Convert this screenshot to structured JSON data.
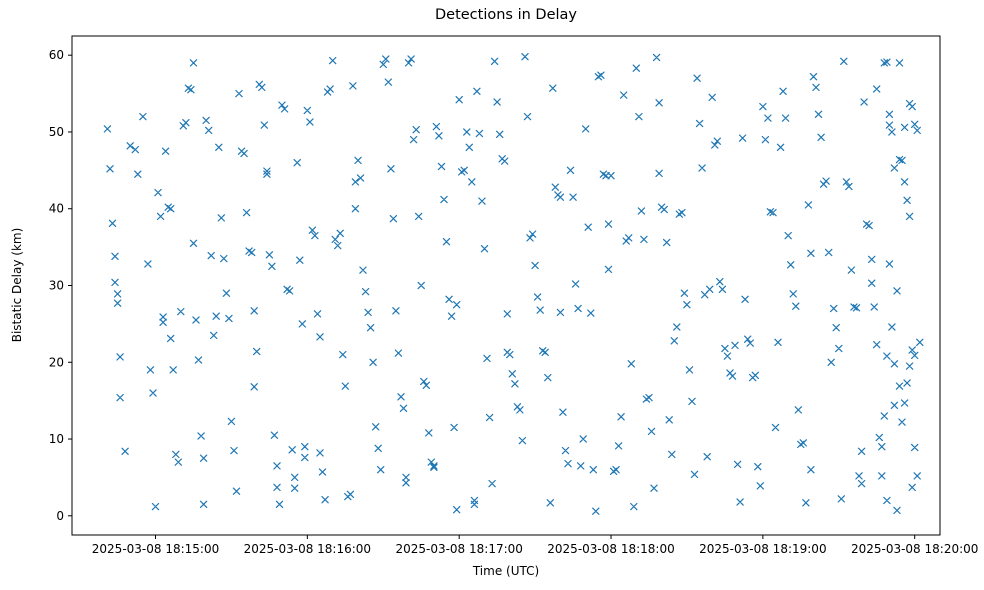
{
  "chart_data": {
    "type": "scatter",
    "title": "Detections in Delay",
    "xlabel": "Time (UTC)",
    "ylabel": "Bistatic Delay (km)",
    "marker": "x",
    "marker_color": "#1f77b4",
    "grid": false,
    "legend": "none",
    "x_encoding": "seconds after 2025-03-08 18:14:00 UTC",
    "xlim": [
      27,
      370
    ],
    "ylim": [
      -2.5,
      62.5
    ],
    "xticks": [
      {
        "value": 60,
        "label": "2025-03-08 18:15:00"
      },
      {
        "value": 120,
        "label": "2025-03-08 18:16:00"
      },
      {
        "value": 180,
        "label": "2025-03-08 18:17:00"
      },
      {
        "value": 240,
        "label": "2025-03-08 18:18:00"
      },
      {
        "value": 300,
        "label": "2025-03-08 18:19:00"
      },
      {
        "value": 360,
        "label": "2025-03-08 18:20:00"
      }
    ],
    "yticks": [
      0,
      10,
      20,
      30,
      40,
      50,
      60
    ],
    "points": [
      [
        41,
        50.4
      ],
      [
        42,
        45.2
      ],
      [
        43,
        38.1
      ],
      [
        44,
        33.8
      ],
      [
        44,
        30.4
      ],
      [
        45,
        28.9
      ],
      [
        45,
        27.7
      ],
      [
        46,
        20.7
      ],
      [
        46,
        15.4
      ],
      [
        48,
        8.4
      ],
      [
        50,
        48.2
      ],
      [
        52,
        47.7
      ],
      [
        53,
        44.5
      ],
      [
        55,
        52.0
      ],
      [
        57,
        32.8
      ],
      [
        58,
        19.0
      ],
      [
        59,
        16.0
      ],
      [
        60,
        1.2
      ],
      [
        61,
        42.1
      ],
      [
        62,
        39.0
      ],
      [
        63,
        25.9
      ],
      [
        63,
        25.2
      ],
      [
        64,
        47.5
      ],
      [
        65,
        40.2
      ],
      [
        66,
        40.0
      ],
      [
        66,
        23.1
      ],
      [
        67,
        19.0
      ],
      [
        68,
        8.0
      ],
      [
        69,
        7.0
      ],
      [
        70,
        26.6
      ],
      [
        71,
        50.8
      ],
      [
        72,
        51.2
      ],
      [
        73,
        55.7
      ],
      [
        74,
        55.5
      ],
      [
        75,
        59.0
      ],
      [
        75,
        35.5
      ],
      [
        76,
        25.5
      ],
      [
        77,
        20.3
      ],
      [
        78,
        10.4
      ],
      [
        79,
        1.5
      ],
      [
        79,
        7.5
      ],
      [
        80,
        51.5
      ],
      [
        81,
        50.2
      ],
      [
        82,
        33.9
      ],
      [
        83,
        23.5
      ],
      [
        84,
        26.0
      ],
      [
        85,
        48.0
      ],
      [
        86,
        38.8
      ],
      [
        87,
        33.5
      ],
      [
        88,
        29.0
      ],
      [
        89,
        25.7
      ],
      [
        90,
        12.3
      ],
      [
        91,
        8.5
      ],
      [
        92,
        3.2
      ],
      [
        93,
        55.0
      ],
      [
        94,
        47.5
      ],
      [
        95,
        47.2
      ],
      [
        96,
        39.5
      ],
      [
        97,
        34.5
      ],
      [
        98,
        34.3
      ],
      [
        99,
        26.7
      ],
      [
        99,
        16.8
      ],
      [
        100,
        21.4
      ],
      [
        101,
        56.2
      ],
      [
        102,
        55.8
      ],
      [
        103,
        50.9
      ],
      [
        104,
        44.9
      ],
      [
        104,
        44.5
      ],
      [
        105,
        34.0
      ],
      [
        106,
        32.5
      ],
      [
        107,
        10.5
      ],
      [
        108,
        6.5
      ],
      [
        108,
        3.7
      ],
      [
        109,
        1.5
      ],
      [
        110,
        53.5
      ],
      [
        111,
        53.0
      ],
      [
        112,
        29.5
      ],
      [
        113,
        29.3
      ],
      [
        114,
        8.6
      ],
      [
        115,
        5.0
      ],
      [
        115,
        3.6
      ],
      [
        116,
        46.0
      ],
      [
        117,
        33.3
      ],
      [
        118,
        25.0
      ],
      [
        119,
        9.0
      ],
      [
        119,
        7.6
      ],
      [
        120,
        52.8
      ],
      [
        121,
        51.3
      ],
      [
        122,
        37.2
      ],
      [
        123,
        36.5
      ],
      [
        124,
        26.3
      ],
      [
        125,
        23.3
      ],
      [
        125,
        8.2
      ],
      [
        126,
        5.7
      ],
      [
        127,
        2.1
      ],
      [
        128,
        55.2
      ],
      [
        129,
        55.6
      ],
      [
        130,
        59.3
      ],
      [
        131,
        36.0
      ],
      [
        132,
        35.2
      ],
      [
        133,
        36.8
      ],
      [
        134,
        21.0
      ],
      [
        135,
        16.9
      ],
      [
        136,
        2.5
      ],
      [
        137,
        2.8
      ],
      [
        138,
        56.0
      ],
      [
        139,
        43.5
      ],
      [
        139,
        40.0
      ],
      [
        140,
        46.3
      ],
      [
        141,
        44.0
      ],
      [
        142,
        32.0
      ],
      [
        143,
        29.2
      ],
      [
        144,
        26.5
      ],
      [
        145,
        24.5
      ],
      [
        146,
        20.0
      ],
      [
        147,
        11.6
      ],
      [
        148,
        8.8
      ],
      [
        149,
        6.0
      ],
      [
        150,
        58.8
      ],
      [
        151,
        59.5
      ],
      [
        152,
        56.5
      ],
      [
        153,
        45.2
      ],
      [
        154,
        38.7
      ],
      [
        155,
        26.7
      ],
      [
        156,
        21.2
      ],
      [
        157,
        15.5
      ],
      [
        158,
        14.0
      ],
      [
        159,
        5.0
      ],
      [
        159,
        4.3
      ],
      [
        160,
        59.0
      ],
      [
        161,
        59.5
      ],
      [
        162,
        49.0
      ],
      [
        163,
        50.3
      ],
      [
        164,
        39.0
      ],
      [
        165,
        30.0
      ],
      [
        166,
        17.5
      ],
      [
        167,
        17.0
      ],
      [
        168,
        10.8
      ],
      [
        169,
        7.0
      ],
      [
        170,
        6.5
      ],
      [
        170,
        6.3
      ],
      [
        171,
        50.7
      ],
      [
        172,
        49.5
      ],
      [
        173,
        45.5
      ],
      [
        174,
        41.2
      ],
      [
        175,
        35.7
      ],
      [
        176,
        28.2
      ],
      [
        177,
        26.0
      ],
      [
        178,
        11.5
      ],
      [
        179,
        0.8
      ],
      [
        179,
        27.5
      ],
      [
        180,
        54.2
      ],
      [
        181,
        44.8
      ],
      [
        182,
        45.0
      ],
      [
        183,
        50.0
      ],
      [
        184,
        48.0
      ],
      [
        185,
        43.5
      ],
      [
        186,
        2.0
      ],
      [
        186,
        1.5
      ],
      [
        187,
        55.3
      ],
      [
        188,
        49.8
      ],
      [
        189,
        41.0
      ],
      [
        190,
        34.8
      ],
      [
        191,
        20.5
      ],
      [
        192,
        12.8
      ],
      [
        193,
        4.2
      ],
      [
        194,
        59.2
      ],
      [
        195,
        53.9
      ],
      [
        196,
        49.7
      ],
      [
        197,
        46.5
      ],
      [
        198,
        46.2
      ],
      [
        199,
        26.3
      ],
      [
        199,
        21.3
      ],
      [
        200,
        21.0
      ],
      [
        201,
        18.5
      ],
      [
        202,
        17.2
      ],
      [
        203,
        14.2
      ],
      [
        204,
        13.8
      ],
      [
        205,
        9.8
      ],
      [
        206,
        59.8
      ],
      [
        207,
        52.0
      ],
      [
        208,
        36.2
      ],
      [
        209,
        36.7
      ],
      [
        210,
        32.6
      ],
      [
        211,
        28.5
      ],
      [
        212,
        26.8
      ],
      [
        213,
        21.5
      ],
      [
        214,
        21.3
      ],
      [
        215,
        18.0
      ],
      [
        216,
        1.7
      ],
      [
        217,
        55.7
      ],
      [
        218,
        42.8
      ],
      [
        219,
        41.8
      ],
      [
        220,
        41.5
      ],
      [
        220,
        26.5
      ],
      [
        221,
        13.5
      ],
      [
        222,
        8.5
      ],
      [
        223,
        6.8
      ],
      [
        224,
        45.0
      ],
      [
        225,
        41.5
      ],
      [
        226,
        30.2
      ],
      [
        227,
        27.0
      ],
      [
        228,
        6.5
      ],
      [
        229,
        10.0
      ],
      [
        230,
        50.4
      ],
      [
        231,
        37.6
      ],
      [
        232,
        26.4
      ],
      [
        233,
        6.0
      ],
      [
        234,
        0.6
      ],
      [
        235,
        57.2
      ],
      [
        236,
        57.4
      ],
      [
        237,
        44.5
      ],
      [
        238,
        44.3
      ],
      [
        239,
        38.0
      ],
      [
        239,
        32.1
      ],
      [
        240,
        44.3
      ],
      [
        241,
        5.8
      ],
      [
        242,
        6.0
      ],
      [
        243,
        9.1
      ],
      [
        244,
        12.9
      ],
      [
        245,
        54.8
      ],
      [
        246,
        35.8
      ],
      [
        247,
        36.2
      ],
      [
        248,
        19.8
      ],
      [
        249,
        1.2
      ],
      [
        250,
        58.3
      ],
      [
        251,
        52.0
      ],
      [
        252,
        39.7
      ],
      [
        253,
        36.0
      ],
      [
        254,
        15.2
      ],
      [
        255,
        15.4
      ],
      [
        256,
        11.0
      ],
      [
        257,
        3.6
      ],
      [
        258,
        59.7
      ],
      [
        259,
        53.8
      ],
      [
        259,
        44.6
      ],
      [
        260,
        40.2
      ],
      [
        261,
        39.9
      ],
      [
        262,
        35.6
      ],
      [
        263,
        12.5
      ],
      [
        264,
        8.0
      ],
      [
        265,
        22.8
      ],
      [
        266,
        24.6
      ],
      [
        267,
        39.3
      ],
      [
        268,
        39.5
      ],
      [
        269,
        29.0
      ],
      [
        270,
        27.5
      ],
      [
        271,
        19.0
      ],
      [
        272,
        14.9
      ],
      [
        273,
        5.4
      ],
      [
        274,
        57.0
      ],
      [
        275,
        51.1
      ],
      [
        276,
        45.3
      ],
      [
        277,
        28.8
      ],
      [
        278,
        7.7
      ],
      [
        279,
        29.5
      ],
      [
        280,
        54.5
      ],
      [
        281,
        48.3
      ],
      [
        282,
        48.8
      ],
      [
        283,
        30.5
      ],
      [
        284,
        29.5
      ],
      [
        285,
        21.8
      ],
      [
        286,
        20.8
      ],
      [
        287,
        18.6
      ],
      [
        288,
        18.2
      ],
      [
        289,
        22.2
      ],
      [
        290,
        6.7
      ],
      [
        291,
        1.8
      ],
      [
        292,
        49.2
      ],
      [
        293,
        28.2
      ],
      [
        294,
        23.0
      ],
      [
        295,
        22.5
      ],
      [
        296,
        18.0
      ],
      [
        297,
        18.3
      ],
      [
        298,
        6.4
      ],
      [
        299,
        3.9
      ],
      [
        300,
        53.3
      ],
      [
        301,
        49.0
      ],
      [
        302,
        51.8
      ],
      [
        303,
        39.6
      ],
      [
        304,
        39.5
      ],
      [
        305,
        11.5
      ],
      [
        306,
        22.6
      ],
      [
        307,
        48.0
      ],
      [
        308,
        55.3
      ],
      [
        309,
        51.8
      ],
      [
        310,
        36.5
      ],
      [
        311,
        32.7
      ],
      [
        312,
        28.9
      ],
      [
        313,
        27.3
      ],
      [
        314,
        13.8
      ],
      [
        315,
        9.3
      ],
      [
        316,
        9.5
      ],
      [
        317,
        1.7
      ],
      [
        318,
        40.5
      ],
      [
        319,
        34.2
      ],
      [
        319,
        6.0
      ],
      [
        320,
        57.2
      ],
      [
        321,
        55.8
      ],
      [
        322,
        52.3
      ],
      [
        323,
        49.3
      ],
      [
        324,
        43.2
      ],
      [
        325,
        43.6
      ],
      [
        326,
        34.3
      ],
      [
        327,
        20.0
      ],
      [
        328,
        27.0
      ],
      [
        329,
        24.5
      ],
      [
        330,
        21.8
      ],
      [
        331,
        2.2
      ],
      [
        332,
        59.2
      ],
      [
        333,
        43.5
      ],
      [
        334,
        42.9
      ],
      [
        335,
        32.0
      ],
      [
        336,
        27.2
      ],
      [
        337,
        27.1
      ],
      [
        338,
        5.2
      ],
      [
        339,
        4.2
      ],
      [
        339,
        8.4
      ],
      [
        340,
        53.9
      ],
      [
        341,
        38.0
      ],
      [
        342,
        37.8
      ],
      [
        343,
        33.4
      ],
      [
        343,
        30.3
      ],
      [
        344,
        27.2
      ],
      [
        345,
        22.3
      ],
      [
        346,
        10.2
      ],
      [
        347,
        9.0
      ],
      [
        347,
        5.2
      ],
      [
        348,
        59.0
      ],
      [
        349,
        59.1
      ],
      [
        350,
        32.8
      ],
      [
        351,
        24.6
      ],
      [
        352,
        14.4
      ],
      [
        353,
        0.7
      ],
      [
        354,
        59.0
      ],
      [
        355,
        46.3
      ],
      [
        349,
        2.0
      ],
      [
        356,
        43.5
      ],
      [
        357,
        41.1
      ],
      [
        358,
        39.0
      ],
      [
        359,
        21.6
      ],
      [
        360,
        20.9
      ],
      [
        345,
        55.6
      ],
      [
        350,
        52.3
      ],
      [
        352,
        45.3
      ],
      [
        354,
        46.4
      ],
      [
        356,
        50.6
      ],
      [
        358,
        53.7
      ],
      [
        359,
        53.3
      ],
      [
        360,
        51.0
      ],
      [
        361,
        50.2
      ],
      [
        362,
        22.6
      ],
      [
        361,
        5.2
      ],
      [
        360,
        8.9
      ],
      [
        359,
        3.7
      ],
      [
        358,
        19.5
      ],
      [
        357,
        17.3
      ],
      [
        356,
        14.7
      ],
      [
        355,
        12.2
      ],
      [
        354,
        16.9
      ],
      [
        353,
        29.3
      ],
      [
        352,
        19.8
      ],
      [
        351,
        50.0
      ],
      [
        350,
        50.9
      ],
      [
        349,
        20.8
      ],
      [
        348,
        13.0
      ]
    ]
  }
}
